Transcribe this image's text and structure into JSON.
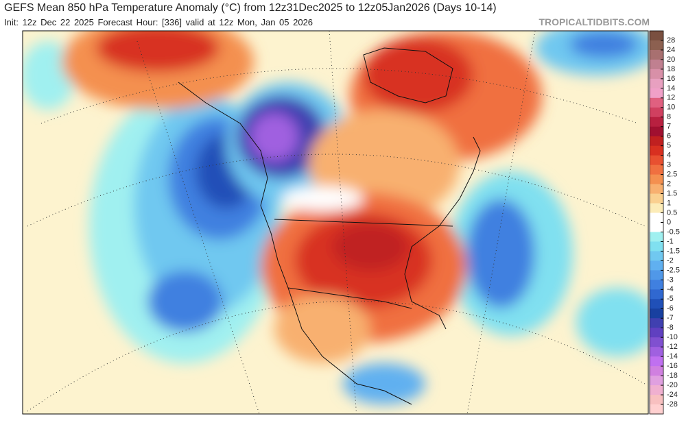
{
  "header": {
    "title": "GEFS Mean 850 hPa Temperature Anomaly (°C) from 12z31Dec2025 to 12z05Jan2026 (Days 10-14)",
    "subtitle": "Init: 12z Dec 22 2025   Forecast Hour: [336]   valid at 12z Mon, Jan 05 2026",
    "source": "TROPICALTIDBITS.COM"
  },
  "colorbar": {
    "labels": [
      28,
      24,
      20,
      18,
      16,
      14,
      12,
      10,
      8,
      7,
      6,
      5,
      4,
      3,
      2.5,
      2,
      1.5,
      1,
      0.5,
      0,
      -0.5,
      -1,
      -1.5,
      -2,
      -2.5,
      -3,
      -4,
      -5,
      -6,
      -7,
      -8,
      -10,
      -12,
      -14,
      -16,
      -18,
      -20,
      -24,
      -28
    ],
    "colors": [
      "#7a5040",
      "#8c6050",
      "#a87070",
      "#c08090",
      "#d890a8",
      "#e8a0c0",
      "#f0a0c8",
      "#e06080",
      "#d04060",
      "#b82040",
      "#a01030",
      "#c02020",
      "#d83020",
      "#e85030",
      "#f07040",
      "#f49050",
      "#f8b070",
      "#fad090",
      "#fcecb8",
      "#ffffff",
      "#ffffff",
      "#a0f0f0",
      "#80e0f0",
      "#70c8f0",
      "#60b0f0",
      "#5098e8",
      "#4080e0",
      "#3068d0",
      "#2050b8",
      "#1840a0",
      "#4040b0",
      "#6040c0",
      "#8050d0",
      "#a060e0",
      "#c070f0",
      "#d080e0",
      "#e0a0e0",
      "#f0b0d0",
      "#f8c0c0",
      "#ffd0d0"
    ]
  }
}
